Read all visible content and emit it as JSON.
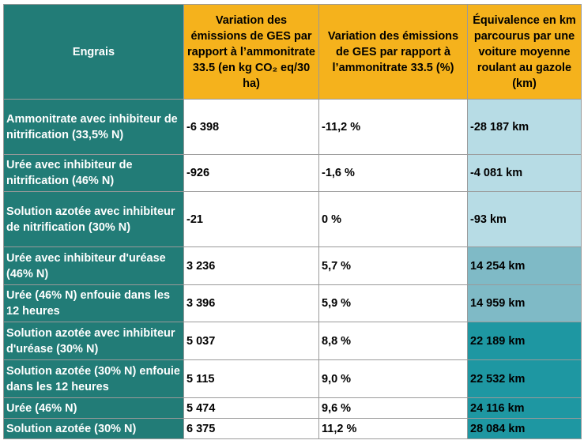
{
  "table": {
    "header": [
      "Engrais",
      "Variation des émissions de GES par rapport à l’ammonitrate 33.5 (en kg CO₂ eq/30 ha)",
      "Variation des émissions de GES par rapport à l’ammonitrate 33.5 (%)",
      "Équivalence en km parcourus par une voiture moyenne roulant au gazole (km)"
    ],
    "rows": [
      [
        "Ammonitrate avec inhibiteur de nitrification (33,5% N)",
        "-6 398",
        "-11,2 %",
        "-28 187 km"
      ],
      [
        "Urée avec inhibiteur de nitrification (46% N)",
        "-926",
        "-1,6 %",
        "-4 081 km"
      ],
      [
        "Solution azotée avec inhibiteur de nitrification (30% N)",
        "-21",
        "0 %",
        "-93 km"
      ],
      [
        "Urée avec inhibiteur d'uréase (46% N)",
        "3 236",
        "5,7 %",
        "14 254 km"
      ],
      [
        "Urée (46% N) enfouie dans les 12 heures",
        "3 396",
        "5,9 %",
        "14 959 km"
      ],
      [
        "Solution azotée avec inhibiteur d'uréase (30% N)",
        "5 037",
        "8,8 %",
        "22 189 km"
      ],
      [
        "Solution azotée (30% N) enfouie dans les 12 heures",
        "5 115",
        "9,0 %",
        "22 532 km"
      ],
      [
        "Urée (46% N)",
        "5 474",
        "9,6 %",
        "24 116 km"
      ],
      [
        "Solution azotée (30% N)",
        "6 375",
        "11,2 %",
        "28 084 km"
      ]
    ]
  }
}
